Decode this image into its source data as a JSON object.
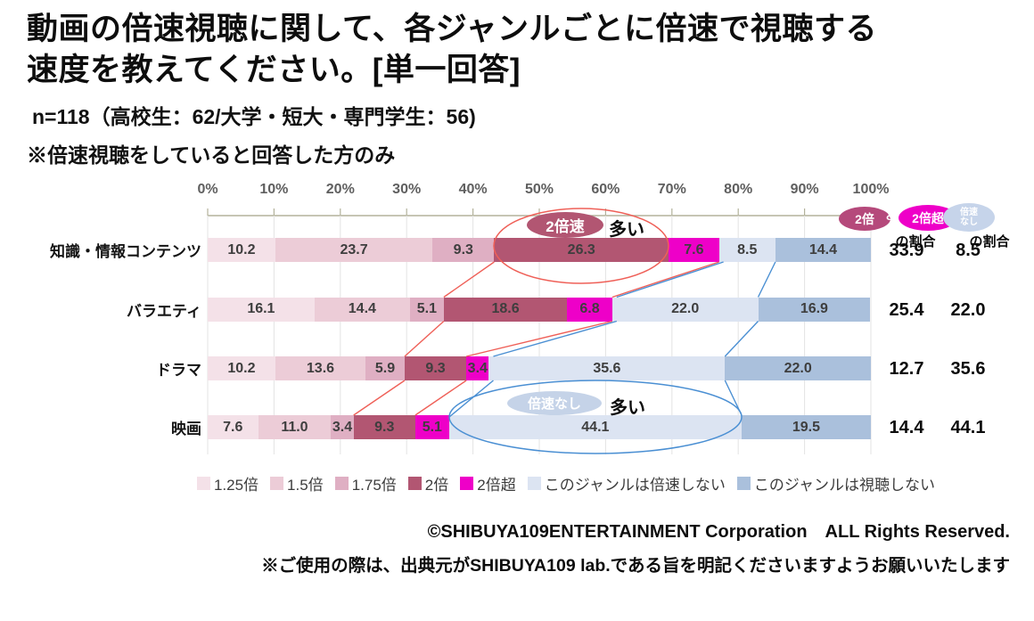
{
  "title": {
    "line1": "動画の倍速視聴に関して、各ジャンルごとに倍速で視聴する",
    "line2": "速度を教えてください。[単一回答]"
  },
  "notes": {
    "sample": "n=118（高校生：62/大学・短大・専門学生：56)",
    "filter": "※倍速視聴をしていると回答した方のみ"
  },
  "chart_data": {
    "type": "bar",
    "stacked": true,
    "orientation": "horizontal",
    "unit": "%",
    "xlim": [
      0,
      100
    ],
    "x_ticks": [
      "0%",
      "10%",
      "20%",
      "30%",
      "40%",
      "50%",
      "60%",
      "70%",
      "80%",
      "90%",
      "100%"
    ],
    "grid": true,
    "legend_position": "bottom",
    "categories": [
      "知識・情報コンテンツ",
      "バラエティ",
      "ドラマ",
      "映画"
    ],
    "series": [
      {
        "name": "1.25倍",
        "color": "#f4e1e8",
        "values": [
          10.2,
          16.1,
          10.2,
          7.6
        ]
      },
      {
        "name": "1.5倍",
        "color": "#ecccd7",
        "values": [
          23.7,
          14.4,
          13.6,
          11.0
        ]
      },
      {
        "name": "1.75倍",
        "color": "#dfafc3",
        "values": [
          9.3,
          5.1,
          5.9,
          3.4
        ]
      },
      {
        "name": "2倍",
        "color": "#b25672",
        "values": [
          26.3,
          18.6,
          9.3,
          9.3
        ]
      },
      {
        "name": "2倍超",
        "color": "#ee00c8",
        "values": [
          7.6,
          6.8,
          3.4,
          5.1
        ]
      },
      {
        "name": "このジャンルは倍速しない",
        "color": "#dce4f2",
        "values": [
          8.5,
          22.0,
          35.6,
          44.1
        ]
      },
      {
        "name": "このジャンルは視聴しない",
        "color": "#aac0dc",
        "values": [
          14.4,
          16.9,
          22.0,
          19.5
        ]
      }
    ],
    "summary_columns": [
      {
        "pill1": "2倍",
        "amp": "&",
        "pill2": "2倍超",
        "subheader": "の割合",
        "pill1_color": "#b5497b",
        "pill2_color": "#ee00c8",
        "values": [
          33.9,
          25.4,
          12.7,
          14.4
        ]
      },
      {
        "pill": "倍速なし",
        "subheader": "の割合",
        "pill_color": "#c6d4ea",
        "values": [
          8.5,
          22.0,
          35.6,
          44.1
        ]
      }
    ],
    "annotations": [
      {
        "bubble": "2倍速",
        "text": "多い",
        "bubble_color": "#b25672",
        "outline_color": "#ef6058"
      },
      {
        "bubble": "倍速なし",
        "text": "多い",
        "bubble_color": "#c5d3e8",
        "outline_color": "#4a8fd3"
      }
    ]
  },
  "footer": {
    "copyright": "©SHIBUYA109ENTERTAINMENT Corporation　ALL Rights Reserved.",
    "usage_note": "※ご使用の際は、出典元がSHIBUYA109 lab.である旨を明記くださいますようお願いいたします"
  }
}
